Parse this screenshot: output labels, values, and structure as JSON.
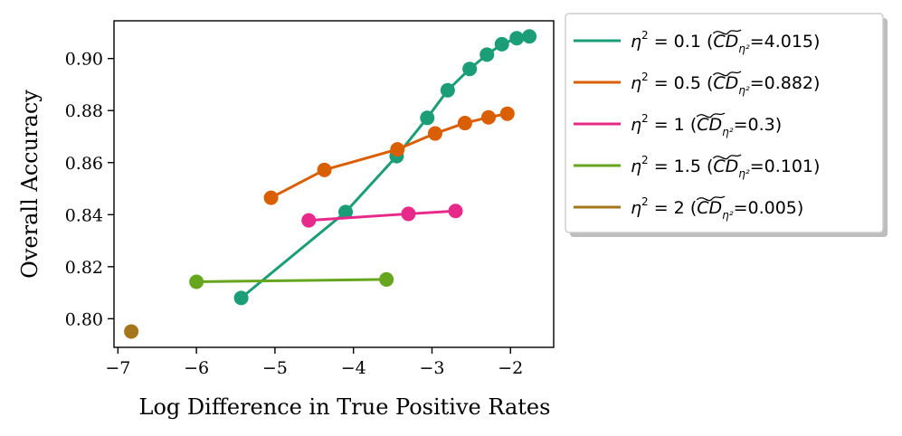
{
  "chart_data": {
    "type": "line",
    "title": "",
    "xlabel": "Log Difference in True Positive Rates",
    "ylabel": "Overall Accuracy",
    "xlim": [
      -7.05,
      -1.45
    ],
    "ylim": [
      0.789,
      0.9145
    ],
    "xticks": [
      -7,
      -6,
      -5,
      -4,
      -3,
      -2
    ],
    "xtick_labels": [
      "−7",
      "−6",
      "−5",
      "−4",
      "−3",
      "−2"
    ],
    "yticks": [
      0.8,
      0.82,
      0.84,
      0.86,
      0.88,
      0.9
    ],
    "ytick_labels": [
      "0.80",
      "0.82",
      "0.84",
      "0.86",
      "0.88",
      "0.90"
    ],
    "grid": false,
    "legend_position": "outside-right",
    "series": [
      {
        "name": "η² = 0.1 (CD̃η²=4.015)",
        "eta": "0.1",
        "cd": "4.015",
        "color": "#1b9e77",
        "x": [
          -5.43,
          -4.1,
          -3.45,
          -3.06,
          -2.8,
          -2.52,
          -2.3,
          -2.11,
          -1.92,
          -1.76
        ],
        "y": [
          0.808,
          0.841,
          0.8625,
          0.8772,
          0.8878,
          0.896,
          0.9015,
          0.9055,
          0.9078,
          0.9085
        ]
      },
      {
        "name": "η² = 0.5 (CD̃η²=0.882)",
        "eta": "0.5",
        "cd": "0.882",
        "color": "#d95f02",
        "x": [
          -5.05,
          -4.37,
          -3.44,
          -2.96,
          -2.58,
          -2.28,
          -2.04
        ],
        "y": [
          0.8465,
          0.8572,
          0.8651,
          0.8712,
          0.8752,
          0.8774,
          0.8788
        ]
      },
      {
        "name": "η² = 1 (CD̃η²=0.3)",
        "eta": "1",
        "cd": "0.3",
        "color": "#e7298a",
        "x": [
          -4.57,
          -3.3,
          -2.7
        ],
        "y": [
          0.8378,
          0.8403,
          0.8414
        ]
      },
      {
        "name": "η² = 1.5 (CD̃η²=0.101)",
        "eta": "1.5",
        "cd": "0.101",
        "color": "#66a61e",
        "x": [
          -6.0,
          -3.58
        ],
        "y": [
          0.8142,
          0.8151
        ]
      },
      {
        "name": "η² = 2 (CD̃η²=0.005)",
        "eta": "2",
        "cd": "0.005",
        "color": "#a6761d",
        "x": [
          -6.83
        ],
        "y": [
          0.7951
        ]
      }
    ]
  }
}
